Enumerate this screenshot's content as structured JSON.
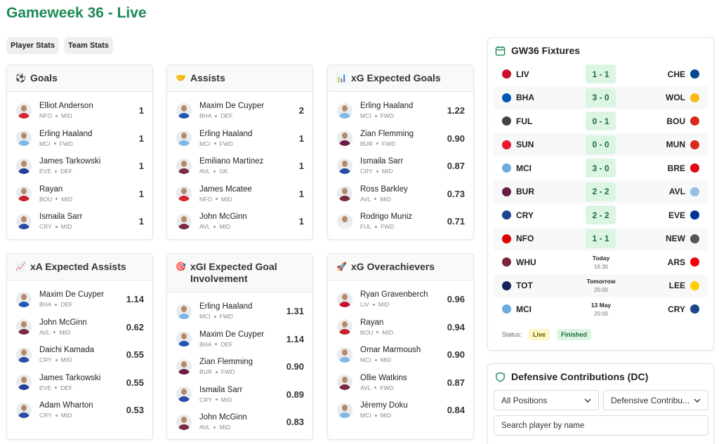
{
  "header": {
    "title": "Gameweek 36 - Live"
  },
  "tabs": [
    "Player Stats",
    "Team Stats"
  ],
  "cards": [
    {
      "icon": "⚽",
      "title": "Goals",
      "players": [
        {
          "name": "Elliot Anderson",
          "team": "NFO",
          "pos": "MID",
          "value": "1"
        },
        {
          "name": "Erling Haaland",
          "team": "MCI",
          "pos": "FWD",
          "value": "1"
        },
        {
          "name": "James Tarkowski",
          "team": "EVE",
          "pos": "DEF",
          "value": "1"
        },
        {
          "name": "Rayan",
          "team": "BOU",
          "pos": "MID",
          "value": "1"
        },
        {
          "name": "Ismaila Sarr",
          "team": "CRY",
          "pos": "MID",
          "value": "1"
        }
      ]
    },
    {
      "icon": "🤝",
      "title": "Assists",
      "players": [
        {
          "name": "Maxim De Cuyper",
          "team": "BHA",
          "pos": "DEF",
          "value": "2"
        },
        {
          "name": "Erling Haaland",
          "team": "MCI",
          "pos": "FWD",
          "value": "1"
        },
        {
          "name": "Emiliano Martinez",
          "team": "AVL",
          "pos": "GK",
          "value": "1"
        },
        {
          "name": "James Mcatee",
          "team": "NFO",
          "pos": "MID",
          "value": "1"
        },
        {
          "name": "John McGinn",
          "team": "AVL",
          "pos": "MID",
          "value": "1"
        }
      ]
    },
    {
      "icon": "📊",
      "title": "xG Expected Goals",
      "players": [
        {
          "name": "Erling Haaland",
          "team": "MCI",
          "pos": "FWD",
          "value": "1.22"
        },
        {
          "name": "Zian Flemming",
          "team": "BUR",
          "pos": "FWD",
          "value": "0.90"
        },
        {
          "name": "Ismaila Sarr",
          "team": "CRY",
          "pos": "MID",
          "value": "0.87"
        },
        {
          "name": "Ross Barkley",
          "team": "AVL",
          "pos": "MID",
          "value": "0.73"
        },
        {
          "name": "Rodrigo Muniz",
          "team": "FUL",
          "pos": "FWD",
          "value": "0.71"
        }
      ]
    },
    {
      "icon": "📈",
      "title": "xA Expected Assists",
      "players": [
        {
          "name": "Maxim De Cuyper",
          "team": "BHA",
          "pos": "DEF",
          "value": "1.14"
        },
        {
          "name": "John McGinn",
          "team": "AVL",
          "pos": "MID",
          "value": "0.62"
        },
        {
          "name": "Daichi Kamada",
          "team": "CRY",
          "pos": "MID",
          "value": "0.55"
        },
        {
          "name": "James Tarkowski",
          "team": "EVE",
          "pos": "DEF",
          "value": "0.55"
        },
        {
          "name": "Adam Wharton",
          "team": "CRY",
          "pos": "MID",
          "value": "0.53"
        }
      ]
    },
    {
      "icon": "🎯",
      "title": "xGI Expected Goal Involvement",
      "players": [
        {
          "name": "Erling Haaland",
          "team": "MCI",
          "pos": "FWD",
          "value": "1.31"
        },
        {
          "name": "Maxim De Cuyper",
          "team": "BHA",
          "pos": "DEF",
          "value": "1.14"
        },
        {
          "name": "Zian Flemming",
          "team": "BUR",
          "pos": "FWD",
          "value": "0.90"
        },
        {
          "name": "Ismaila Sarr",
          "team": "CRY",
          "pos": "MID",
          "value": "0.89"
        },
        {
          "name": "John McGinn",
          "team": "AVL",
          "pos": "MID",
          "value": "0.83"
        }
      ]
    },
    {
      "icon": "🚀",
      "title": "xG Overachievers",
      "players": [
        {
          "name": "Ryan Gravenberch",
          "team": "LIV",
          "pos": "MID",
          "value": "0.96"
        },
        {
          "name": "Rayan",
          "team": "BOU",
          "pos": "MID",
          "value": "0.94"
        },
        {
          "name": "Omar Marmoush",
          "team": "MCI",
          "pos": "MID",
          "value": "0.90"
        },
        {
          "name": "Ollie Watkins",
          "team": "AVL",
          "pos": "FWD",
          "value": "0.87"
        },
        {
          "name": "Jéremy Doku",
          "team": "MCI",
          "pos": "MID",
          "value": "0.84"
        }
      ]
    }
  ],
  "fixtures": {
    "title": "GW36 Fixtures",
    "matches": [
      {
        "home": "LIV",
        "score": "1 - 1",
        "away": "CHE"
      },
      {
        "home": "BHA",
        "score": "3 - 0",
        "away": "WOL"
      },
      {
        "home": "FUL",
        "score": "0 - 1",
        "away": "BOU"
      },
      {
        "home": "SUN",
        "score": "0 - 0",
        "away": "MUN"
      },
      {
        "home": "MCI",
        "score": "3 - 0",
        "away": "BRE"
      },
      {
        "home": "BUR",
        "score": "2 - 2",
        "away": "AVL"
      },
      {
        "home": "CRY",
        "score": "2 - 2",
        "away": "EVE"
      },
      {
        "home": "NFO",
        "score": "1 - 1",
        "away": "NEW"
      },
      {
        "home": "WHU",
        "day": "Today",
        "time": "16:30",
        "away": "ARS"
      },
      {
        "home": "TOT",
        "day": "Tomorrow",
        "time": "20:00",
        "away": "LEE"
      },
      {
        "home": "MCI",
        "day": "13 May",
        "time": "20:00",
        "away": "CRY"
      }
    ],
    "status_label": "Status:",
    "legend": [
      "Live",
      "Finished"
    ]
  },
  "dc": {
    "title": "Defensive Contributions (DC)",
    "filters": [
      "All Positions",
      "Defensive Contribu..."
    ],
    "search_placeholder": "Search player by name"
  }
}
